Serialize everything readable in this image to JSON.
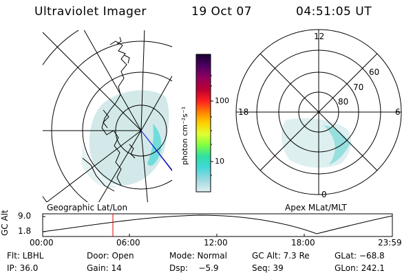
{
  "header": {
    "title": "Ultraviolet Imager",
    "date": "19 Oct 07",
    "time": "04:51:05 UT"
  },
  "geo_map": {
    "label": "Geographic Lat/Lon"
  },
  "mag_map": {
    "label": "Apex MLat/MLT",
    "mlt_labels": {
      "top": "12",
      "left": "18",
      "right": "6",
      "bottom": "0"
    },
    "lat_labels": [
      "60",
      "70",
      "80"
    ]
  },
  "colorbar": {
    "unit_label": "photon cm⁻²s⁻¹",
    "ticks": [
      "100",
      "10"
    ],
    "colors": [
      "#1a0033",
      "#4a0060",
      "#8a0060",
      "#c00030",
      "#ff2020",
      "#ff8000",
      "#ffd000",
      "#e0ff30",
      "#80ff40",
      "#30e0a0",
      "#40d8d8",
      "#9ad8e0",
      "#e0f0f0"
    ]
  },
  "alt_plot": {
    "ylabel": "GC Alt",
    "y_ticks": [
      "9.0",
      "1.8"
    ],
    "x_ticks": [
      "00:00",
      "06:00",
      "12:00",
      "18:00",
      "23:59"
    ],
    "marker_time": "04:51"
  },
  "footer": {
    "row1": {
      "flt": "Flt: LBHL",
      "door": "Door: Open",
      "mode": "Mode: Normal",
      "gcalt": "GC Alt: 7.3 Re",
      "glat": "GLat: −68.8"
    },
    "row2": {
      "ip": "IP: 36.0",
      "gain": "Gain: 14",
      "dsp": "Dsp:    −5.9",
      "seq": "Seq: 39",
      "glon": "GLon: 242.1"
    }
  }
}
